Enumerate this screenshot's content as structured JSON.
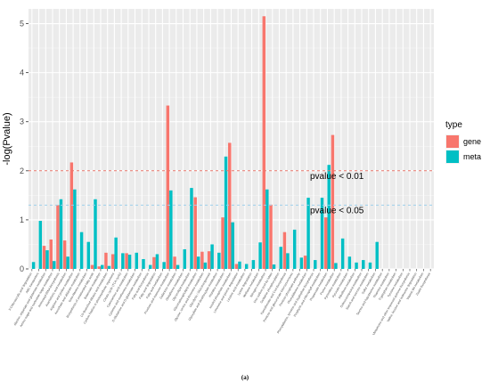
{
  "chart_data": {
    "type": "bar",
    "title": "",
    "xlabel": "",
    "ylabel": "-log(Pvalue)",
    "ylim": [
      0,
      5.3
    ],
    "yticks": [
      0,
      1,
      2,
      3,
      4,
      5
    ],
    "grid": true,
    "legend_position": "right",
    "legend_title": "type",
    "categories": [
      "3-Chloroacrylic acid degradation",
      "ABC transporters",
      "Alanine, aspartate and glutamate metabolism",
      "Amino sugar and nucleotide sugar metabolism",
      "Aminoacyl-tRNA biosynthesis",
      "Arachidonic acid metabolism",
      "Arginine and proline metabolism",
      "Ascorbate and aldarate metabolism",
      "beta-Alanine metabolism",
      "Biosynthesis of unsaturated fatty acids",
      "Butanoate metabolism",
      "C5-Branched dibasic acid metabolism",
      "Carbon fixation in photosynthetic organisms",
      "Citrate cycle (TCA cycle)",
      "Cyanoamino acid metabolism",
      "Cysteine and methionine metabolism",
      "D-Glutamine and D-glutamate metabolism",
      "Fatty acid biosynthesis",
      "Fatty acid degradation",
      "Fatty acid metabolism",
      "Fructose and mannose metabolism",
      "Galactose metabolism",
      "Glutathione metabolism",
      "Glycerolipid metabolism",
      "Glycerophospholipid metabolism",
      "Glycine, serine and threonine metabolism",
      "Glycolysis / Gluconeogenesis",
      "Glyoxylate and dicarboxylate metabolism",
      "Histidine metabolism",
      "Inositol phosphate metabolism",
      "Limonene and pinene degradation",
      "Linoleic acid metabolism",
      "Lysine degradation",
      "Methane metabolism",
      "Nitrogen metabolism",
      "One carbon pool by folate",
      "Oxidative phosphorylation",
      "Pantothenate and CoA biosynthesis",
      "Pentose and glucuronate interconversions",
      "Pentose phosphate pathway",
      "Phenylalanine metabolism",
      "Phenylalanine, tyrosine and tryptophan biosynthesis",
      "Porphyrin and chlorophyll metabolism",
      "Propanoate metabolism",
      "Purine metabolism",
      "Pyrimidine metabolism",
      "Pyruvate metabolism",
      "Riboflavin metabolism",
      "Selenocompound metabolism",
      "Starch and sucrose metabolism",
      "Sulfur metabolism",
      "Taurine and hypotaurine metabolism",
      "Thiamine metabolism",
      "Tryptophan metabolism",
      "Tyrosine metabolism",
      "Ubiquinone and other terpenoid-quinone biosynthesis",
      "Valine, leucine and isoleucine degradation",
      "Vitamin B6 metabolism",
      "Zeatin biosynthesis"
    ],
    "series": [
      {
        "name": "gene",
        "color": "#F8766D",
        "values": [
          0,
          0,
          0.47,
          0.6,
          1.3,
          0.58,
          2.17,
          0,
          0,
          0.08,
          0.05,
          0.33,
          0.3,
          0,
          0.32,
          0,
          0,
          0,
          0.24,
          0,
          3.33,
          0.25,
          0,
          0,
          1.46,
          0.35,
          0.36,
          0,
          1.05,
          2.57,
          0.1,
          0,
          0,
          0,
          5.15,
          1.31,
          0,
          0.75,
          0,
          0,
          0.27,
          0,
          0,
          1.05,
          2.73,
          0,
          0,
          0,
          0,
          0,
          0,
          0,
          0,
          0,
          0,
          0,
          0,
          0,
          0
        ]
      },
      {
        "name": "meta",
        "color": "#00BFC4",
        "values": [
          0.14,
          0.98,
          0.38,
          0.16,
          1.42,
          0.25,
          1.62,
          0.75,
          0.55,
          1.42,
          0.08,
          0.06,
          0.64,
          0.32,
          0.29,
          0.33,
          0.2,
          0.08,
          0.3,
          0.14,
          1.6,
          0.08,
          0.4,
          1.65,
          0.25,
          0.13,
          0.5,
          0.33,
          2.29,
          0.95,
          0.15,
          0.1,
          0.18,
          0.54,
          1.62,
          0.09,
          0.45,
          0.32,
          0.8,
          0.23,
          1.45,
          0.18,
          1.45,
          2.12,
          0.12,
          0.62,
          0.25,
          0.13,
          0.18,
          0.13,
          0.55,
          0,
          0,
          0,
          0,
          0,
          0,
          0,
          0
        ]
      }
    ],
    "reference_lines": [
      {
        "y": 2.0,
        "label": "pvalue < 0.01",
        "color": "#E8766D"
      },
      {
        "y": 1.3,
        "label": "pvalue < 0.05",
        "color": "#9FD0EB"
      }
    ]
  },
  "caption": "(a)"
}
